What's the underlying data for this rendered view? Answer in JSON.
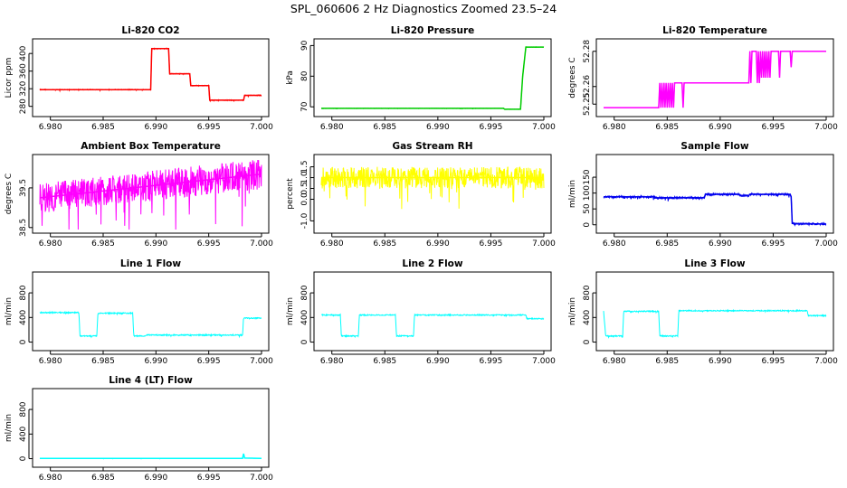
{
  "page_title": "SPL_060606  2 Hz Diagnostics Zoomed 23.5–24",
  "chart_data": [
    {
      "type": "line",
      "title": "Li-820 CO2",
      "ylabel": "Licor ppm",
      "color": "#ff0000",
      "xlim": [
        6.979,
        7.0
      ],
      "ylim": [
        265,
        425
      ],
      "xticks": [
        "6.980",
        "6.985",
        "6.990",
        "6.995",
        "7.000"
      ],
      "yticks": [
        "280",
        "320",
        "360",
        "400"
      ],
      "noise": 0.8,
      "series": [
        {
          "points": [
            [
              6.979,
              318
            ],
            [
              6.9895,
              318
            ],
            [
              6.9896,
              411
            ],
            [
              6.9912,
              411
            ],
            [
              6.9913,
              354
            ],
            [
              6.9932,
              354
            ],
            [
              6.9933,
              327
            ],
            [
              6.995,
              327
            ],
            [
              6.9951,
              294
            ],
            [
              6.9983,
              294
            ],
            [
              6.9984,
              305
            ],
            [
              7.0,
              305
            ]
          ]
        }
      ]
    },
    {
      "type": "line",
      "title": "Li-820 Pressure",
      "ylabel": "kPa",
      "color": "#00cc00",
      "xlim": [
        6.979,
        7.0
      ],
      "ylim": [
        68,
        91
      ],
      "xticks": [
        "6.980",
        "6.985",
        "6.990",
        "6.995",
        "7.000"
      ],
      "yticks": [
        "70",
        "80",
        "90"
      ],
      "noise": 0.05,
      "series": [
        {
          "points": [
            [
              6.979,
              69.5
            ],
            [
              6.9962,
              69.5
            ],
            [
              6.9963,
              69.2
            ],
            [
              6.9978,
              69.2
            ],
            [
              6.998,
              80
            ],
            [
              6.9983,
              89.5
            ],
            [
              7.0,
              89.5
            ]
          ]
        }
      ]
    },
    {
      "type": "line",
      "title": "Li-820 Temperature",
      "ylabel": "degrees C",
      "color": "#ff00ff",
      "xlim": [
        6.979,
        7.0
      ],
      "ylim": [
        52.245,
        52.285
      ],
      "xticks": [
        "6.980",
        "6.985",
        "6.990",
        "6.995",
        "7.000"
      ],
      "yticks": [
        "52.25",
        "52.26",
        "52.28"
      ],
      "noise": 0,
      "series": [
        {
          "points": [
            [
              6.979,
              52.248
            ],
            [
              6.9842,
              52.248
            ],
            [
              6.9843,
              52.262
            ],
            [
              6.9844,
              52.248
            ],
            [
              6.9845,
              52.262
            ],
            [
              6.9846,
              52.248
            ],
            [
              6.9847,
              52.262
            ],
            [
              6.9848,
              52.248
            ],
            [
              6.9849,
              52.262
            ],
            [
              6.985,
              52.248
            ],
            [
              6.9851,
              52.262
            ],
            [
              6.9852,
              52.248
            ],
            [
              6.9853,
              52.262
            ],
            [
              6.9854,
              52.248
            ],
            [
              6.9855,
              52.262
            ],
            [
              6.9856,
              52.248
            ],
            [
              6.9857,
              52.262
            ],
            [
              6.9864,
              52.262
            ],
            [
              6.9865,
              52.248
            ],
            [
              6.9866,
              52.262
            ],
            [
              6.9927,
              52.262
            ],
            [
              6.9928,
              52.28
            ],
            [
              6.9929,
              52.262
            ],
            [
              6.993,
              52.28
            ],
            [
              6.9934,
              52.28
            ],
            [
              6.9935,
              52.262
            ],
            [
              6.9936,
              52.28
            ],
            [
              6.9937,
              52.262
            ],
            [
              6.9938,
              52.28
            ],
            [
              6.9939,
              52.265
            ],
            [
              6.994,
              52.28
            ],
            [
              6.9941,
              52.265
            ],
            [
              6.9942,
              52.28
            ],
            [
              6.9943,
              52.265
            ],
            [
              6.9944,
              52.28
            ],
            [
              6.9945,
              52.265
            ],
            [
              6.9946,
              52.28
            ],
            [
              6.9947,
              52.265
            ],
            [
              6.9948,
              52.28
            ],
            [
              6.9955,
              52.28
            ],
            [
              6.9956,
              52.265
            ],
            [
              6.9957,
              52.28
            ],
            [
              6.9966,
              52.28
            ],
            [
              6.9967,
              52.271
            ],
            [
              6.9968,
              52.28
            ],
            [
              7.0,
              52.28
            ]
          ]
        }
      ]
    },
    {
      "type": "line",
      "title": "Ambient Box Temperature",
      "ylabel": "degrees C",
      "color": "#ff00ff",
      "xlim": [
        6.979,
        7.0
      ],
      "ylim": [
        38.45,
        40.25
      ],
      "xticks": [
        "6.980",
        "6.985",
        "6.990",
        "6.995",
        "7.000"
      ],
      "yticks": [
        "38.5",
        "39.5"
      ],
      "noise": 0.38,
      "series": [
        {
          "points": [
            [
              6.979,
              39.25
            ],
            [
              7.0,
              39.85
            ]
          ]
        }
      ]
    },
    {
      "type": "line",
      "title": "Gas Stream RH",
      "ylabel": "percent",
      "color": "#ffff00",
      "xlim": [
        6.979,
        7.0
      ],
      "ylim": [
        -1.4,
        1.9
      ],
      "xticks": [
        "6.980",
        "6.985",
        "6.990",
        "6.995",
        "7.000"
      ],
      "yticks": [
        "-1.0",
        "0.0",
        "0.5",
        "1.0",
        "1.5"
      ],
      "noise": 0.5,
      "series": [
        {
          "points": [
            [
              6.979,
              1.0
            ],
            [
              7.0,
              1.0
            ]
          ]
        }
      ]
    },
    {
      "type": "line",
      "title": "Sample Flow",
      "ylabel": "ml/min",
      "color": "#0000ee",
      "xlim": [
        6.979,
        7.0
      ],
      "ylim": [
        -15,
        210
      ],
      "xticks": [
        "6.980",
        "6.985",
        "6.990",
        "6.995",
        "7.000"
      ],
      "yticks": [
        "0",
        "50",
        "100",
        "150"
      ],
      "noise": 3,
      "series": [
        {
          "points": [
            [
              6.979,
              88
            ],
            [
              6.9838,
              88
            ],
            [
              6.9839,
              85
            ],
            [
              6.9885,
              85
            ],
            [
              6.9886,
              96
            ],
            [
              6.9918,
              96
            ],
            [
              6.9919,
              92
            ],
            [
              6.9927,
              92
            ],
            [
              6.9928,
              96
            ],
            [
              6.9966,
              96
            ],
            [
              6.9967,
              88
            ],
            [
              6.9968,
              4
            ],
            [
              7.0,
              2
            ]
          ]
        }
      ]
    },
    {
      "type": "line",
      "title": "Line 1 Flow",
      "ylabel": "ml/min",
      "color": "#00ffff",
      "xlim": [
        6.979,
        7.0
      ],
      "ylim": [
        -80,
        1080
      ],
      "xticks": [
        "6.980",
        "6.985",
        "6.990",
        "6.995",
        "7.000"
      ],
      "yticks": [
        "0",
        "400",
        "800"
      ],
      "noise": 8,
      "series": [
        {
          "points": [
            [
              6.979,
              480
            ],
            [
              6.9827,
              480
            ],
            [
              6.9828,
              100
            ],
            [
              6.9844,
              100
            ],
            [
              6.9845,
              470
            ],
            [
              6.9878,
              470
            ],
            [
              6.9879,
              100
            ],
            [
              6.989,
              100
            ],
            [
              6.9891,
              115
            ],
            [
              6.9982,
              115
            ],
            [
              6.9983,
              390
            ],
            [
              7.0,
              390
            ]
          ]
        }
      ]
    },
    {
      "type": "line",
      "title": "Line 2 Flow",
      "ylabel": "ml/min",
      "color": "#00ffff",
      "xlim": [
        6.979,
        7.0
      ],
      "ylim": [
        -80,
        1080
      ],
      "xticks": [
        "6.980",
        "6.985",
        "6.990",
        "6.995",
        "7.000"
      ],
      "yticks": [
        "0",
        "400",
        "800"
      ],
      "noise": 8,
      "series": [
        {
          "points": [
            [
              6.979,
              440
            ],
            [
              6.9808,
              440
            ],
            [
              6.9809,
              100
            ],
            [
              6.9825,
              100
            ],
            [
              6.9826,
              440
            ],
            [
              6.986,
              440
            ],
            [
              6.9861,
              100
            ],
            [
              6.9877,
              100
            ],
            [
              6.9878,
              440
            ],
            [
              6.9983,
              440
            ],
            [
              6.9984,
              380
            ],
            [
              7.0,
              380
            ]
          ]
        }
      ]
    },
    {
      "type": "line",
      "title": "Line 3 Flow",
      "ylabel": "ml/min",
      "color": "#00ffff",
      "xlim": [
        6.979,
        7.0
      ],
      "ylim": [
        -80,
        1080
      ],
      "xticks": [
        "6.980",
        "6.985",
        "6.990",
        "6.995",
        "7.000"
      ],
      "yticks": [
        "0",
        "400",
        "800"
      ],
      "noise": 8,
      "series": [
        {
          "points": [
            [
              6.979,
              500
            ],
            [
              6.9792,
              100
            ],
            [
              6.9808,
              100
            ],
            [
              6.9809,
              500
            ],
            [
              6.9842,
              500
            ],
            [
              6.9843,
              100
            ],
            [
              6.986,
              100
            ],
            [
              6.9861,
              510
            ],
            [
              6.9982,
              510
            ],
            [
              6.9983,
              430
            ],
            [
              7.0,
              430
            ]
          ]
        }
      ]
    },
    {
      "type": "line",
      "title": "Line 4 (LT) Flow",
      "ylabel": "ml/min",
      "color": "#00ffff",
      "xlim": [
        6.979,
        7.0
      ],
      "ylim": [
        -80,
        1080
      ],
      "xticks": [
        "6.980",
        "6.985",
        "6.990",
        "6.995",
        "7.000"
      ],
      "yticks": [
        "0",
        "400",
        "800"
      ],
      "noise": 2,
      "series": [
        {
          "points": [
            [
              6.979,
              5
            ],
            [
              6.9982,
              5
            ],
            [
              6.9983,
              80
            ],
            [
              6.9984,
              10
            ],
            [
              7.0,
              5
            ]
          ]
        }
      ]
    }
  ]
}
